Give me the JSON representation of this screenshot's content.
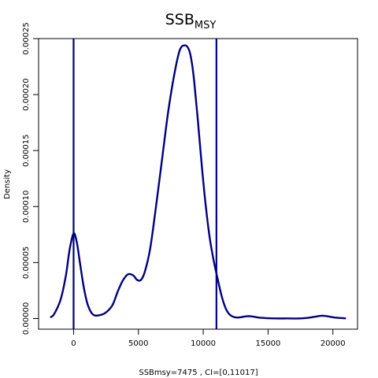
{
  "chart_data": {
    "type": "line",
    "title_main": "SSB",
    "title_sub": "MSY",
    "xlabel": "SSBmsy=7475 , CI=[0,11017]",
    "ylabel": "Density",
    "xlim": [
      -2700,
      21900
    ],
    "ylim": [
      -9.5e-06,
      0.00025
    ],
    "x_ticks": [
      0,
      5000,
      10000,
      15000,
      20000
    ],
    "x_tick_labels": [
      "0",
      "5000",
      "10000",
      "15000",
      "20000"
    ],
    "y_ticks": [
      0.0,
      5e-05,
      0.0001,
      0.00015,
      0.0002,
      0.00025
    ],
    "y_tick_labels": [
      "0.00000",
      "0.00005",
      "0.00010",
      "0.00015",
      "0.00020",
      "0.00025"
    ],
    "line_color": "#000080",
    "vlines": [
      0,
      11017
    ],
    "series": [
      {
        "x": [
          -1800,
          -1500,
          -1000,
          -600,
          -300,
          0,
          250,
          500,
          800,
          1100,
          1500,
          2000,
          2500,
          3000,
          3400,
          3800,
          4200,
          4600,
          4900,
          5200,
          5500,
          5900,
          6300,
          6800,
          7300,
          7800,
          8200,
          8600,
          8900,
          9100,
          9300,
          9600,
          9900,
          10200,
          10500,
          10800,
          11100,
          11400,
          11700,
          12000,
          12400,
          12800,
          13300,
          13700,
          14200,
          14800,
          15500,
          16500,
          17500,
          18300,
          18800,
          19200,
          19600,
          20200,
          21000
        ],
        "y": [
          1e-06,
          4e-06,
          1.7e-05,
          3.8e-05,
          6.2e-05,
          7.6e-05,
          6.8e-05,
          4.9e-05,
          2.7e-05,
          1.2e-05,
          3.5e-06,
          3e-06,
          5.5e-06,
          1.2e-05,
          2.4e-05,
          3.4e-05,
          3.95e-05,
          3.85e-05,
          3.45e-05,
          3.45e-05,
          4.2e-05,
          6.2e-05,
          9.5e-05,
          0.00014,
          0.000185,
          0.00022,
          0.00024,
          0.000244,
          0.00024,
          0.00023,
          0.000212,
          0.000175,
          0.000135,
          0.0001,
          7.2e-05,
          5.2e-05,
          3.6e-05,
          2.1e-05,
          1e-05,
          4e-06,
          1.2e-06,
          1e-06,
          2e-06,
          2e-06,
          1e-06,
          4e-07,
          1e-07,
          1e-07,
          1e-07,
          1e-06,
          2e-06,
          2.5e-06,
          2e-06,
          8e-07,
          2e-07
        ]
      }
    ]
  }
}
